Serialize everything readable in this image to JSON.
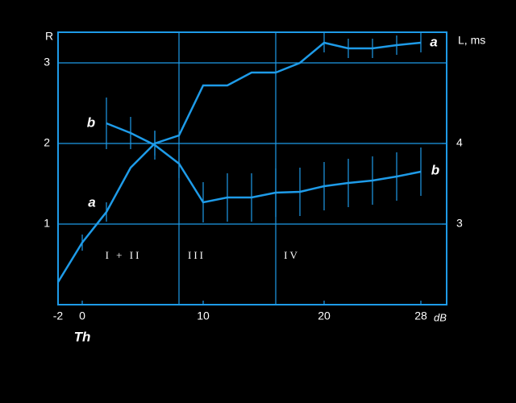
{
  "chart_data": {
    "type": "line",
    "y_label": "R",
    "y2_label": "L, ms",
    "x_unit": "dB",
    "x_marker": "Th",
    "x": [
      -2,
      0,
      2,
      4,
      6,
      8,
      10,
      12,
      14,
      16,
      18,
      20,
      22,
      24,
      26,
      28
    ],
    "series": [
      {
        "name": "a",
        "color": "#1e9be8",
        "x": [
          -2,
          0,
          2,
          4,
          6,
          8,
          10,
          12,
          14,
          16,
          18,
          20,
          22,
          24,
          26,
          28
        ],
        "values": [
          0.28,
          0.77,
          1.15,
          1.7,
          2.0,
          2.1,
          2.72,
          2.72,
          2.88,
          2.88,
          3.0,
          3.25,
          3.18,
          3.18,
          3.22,
          3.25
        ],
        "errors": [
          null,
          0.1,
          0.12,
          null,
          0.15,
          null,
          null,
          null,
          null,
          null,
          null,
          0.12,
          0.12,
          0.12,
          0.12,
          0.12
        ]
      },
      {
        "name": "b",
        "color": "#1e9be8",
        "axis": "y2",
        "x": [
          2,
          4,
          6,
          8,
          10,
          12,
          14,
          16,
          18,
          20,
          22,
          24,
          26,
          28
        ],
        "values": [
          4.25,
          4.13,
          3.98,
          3.75,
          3.27,
          3.33,
          3.33,
          3.39,
          3.4,
          3.47,
          3.51,
          3.54,
          3.59,
          3.65
        ],
        "errors": [
          0.32,
          0.2,
          0.18,
          0.18,
          0.25,
          0.3,
          0.3,
          0.3,
          0.3,
          0.3,
          0.3,
          0.3,
          0.3,
          0.3
        ]
      }
    ],
    "xlim": [
      -2,
      30
    ],
    "xticks": [
      -2,
      0,
      10,
      20,
      28
    ],
    "ylim": [
      0,
      3.38
    ],
    "yticks": [
      1,
      2,
      3
    ],
    "y2lim": [
      2,
      5.38
    ],
    "y2ticks": [
      3,
      4
    ],
    "dividers": [
      8,
      16
    ],
    "region_labels": [
      "I + II",
      "III",
      "IV"
    ],
    "grid": true
  }
}
